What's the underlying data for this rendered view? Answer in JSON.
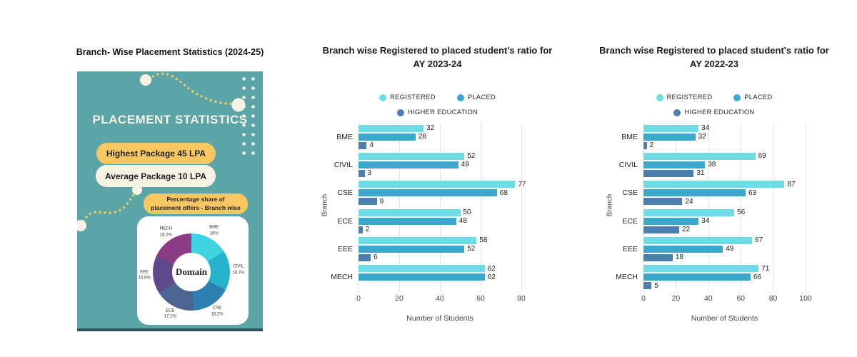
{
  "poster": {
    "title": "Branch- Wise Placement Statistics (2024-25)",
    "heading": "PLACEMENT STATISTICS",
    "badges": {
      "highest": "Highest Package 45 LPA",
      "average": "Average Package 10 LPA",
      "caption_line1": "Percentage share of",
      "caption_line2": "placement offers - Branch wise"
    },
    "colors": {
      "background": "#5BA4A7",
      "cream": "#F6F3E4",
      "yellow": "#F8C760",
      "bottom_border": "#2C5560"
    }
  },
  "chart_data": [
    {
      "type": "pie",
      "subtype": "donut",
      "title": "Percentage share of placement offers - Branch wise",
      "center_label": "Domain",
      "legend_position": "none",
      "segments": [
        {
          "label": "BME",
          "value": 16.0,
          "display": "16%",
          "color": "#3FD4E2"
        },
        {
          "label": "CIVIL",
          "value": 16.7,
          "display": "16.7%",
          "color": "#27B2CB"
        },
        {
          "label": "CSE",
          "value": 16.2,
          "display": "16.2%",
          "color": "#2E80B0"
        },
        {
          "label": "ECE",
          "value": 17.1,
          "display": "17.1%",
          "color": "#4C6492"
        },
        {
          "label": "EEE",
          "value": 15.8,
          "display": "15.8%",
          "color": "#5E4A8A"
        },
        {
          "label": "MECH",
          "value": 18.2,
          "display": "18.2%",
          "color": "#8C3C85"
        }
      ]
    },
    {
      "type": "bar",
      "orientation": "horizontal",
      "title": "Branch wise Registered to placed student's ratio for AY 2023-24",
      "categories": [
        "BME",
        "CIVIL",
        "CSE",
        "ECE",
        "EEE",
        "MECH"
      ],
      "series": [
        {
          "name": "REGISTERED",
          "color": "#6FDBE5",
          "values": [
            32,
            52,
            77,
            50,
            58,
            62
          ]
        },
        {
          "name": "PLACED",
          "color": "#3BA9CE",
          "values": [
            28,
            49,
            68,
            48,
            52,
            62
          ]
        },
        {
          "name": "HIGHER EDUCATION",
          "color": "#4C7FAC",
          "values": [
            4,
            3,
            9,
            2,
            6,
            null
          ]
        }
      ],
      "xlabel": "Number of Students",
      "ylabel": "Branch",
      "xlim": [
        0,
        80
      ],
      "xticks": [
        0,
        20,
        40,
        60,
        80
      ],
      "grid": true,
      "legend_position": "top"
    },
    {
      "type": "bar",
      "orientation": "horizontal",
      "title": "Branch wise Registered to placed student's ratio for AY 2022-23",
      "categories": [
        "BME",
        "CIVIL",
        "CSE",
        "ECE",
        "EEE",
        "MECH"
      ],
      "series": [
        {
          "name": "REGISTERED",
          "color": "#6FDBE5",
          "values": [
            34,
            69,
            87,
            56,
            67,
            71
          ]
        },
        {
          "name": "PLACED",
          "color": "#3BA9CE",
          "values": [
            32,
            38,
            63,
            34,
            49,
            66
          ]
        },
        {
          "name": "HIGHER EDUCATION",
          "color": "#4C7FAC",
          "values": [
            2,
            31,
            24,
            22,
            18,
            5
          ]
        }
      ],
      "xlabel": "Number of Students",
      "ylabel": "Branch",
      "xlim": [
        0,
        100
      ],
      "xticks": [
        0,
        20,
        40,
        60,
        80,
        100
      ],
      "grid": true,
      "legend_position": "top"
    }
  ]
}
